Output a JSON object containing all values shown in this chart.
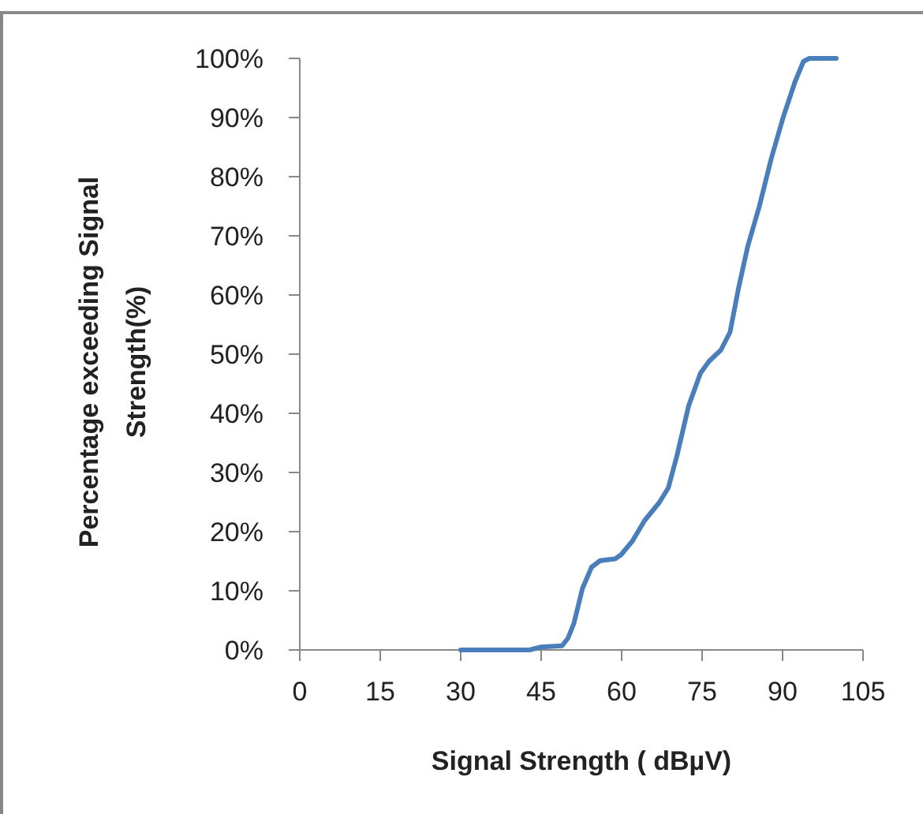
{
  "chart_data": {
    "type": "line",
    "xlabel": "Signal Strength ( dBµV)",
    "ylabel": "Percentage exceeding Signal\nStrength(%)",
    "x": [
      30,
      42.8,
      45,
      48.9,
      50,
      51.1,
      52.7,
      54.4,
      56,
      58.8,
      59.9,
      62,
      64.3,
      67,
      68.7,
      70.3,
      72.5,
      74.7,
      76.3,
      78.5,
      80.2,
      81.8,
      83.5,
      85.7,
      87.9,
      90.1,
      92.3,
      93.9,
      95,
      100
    ],
    "series": [
      {
        "color": "#4a7ebb",
        "values": [
          0,
          0,
          0.5,
          0.7,
          2,
          4.5,
          10.4,
          14,
          15.1,
          15.4,
          16.1,
          18.4,
          21.9,
          24.9,
          27.4,
          32.8,
          41.3,
          46.8,
          48.8,
          50.7,
          53.7,
          61.2,
          68.2,
          75.1,
          83.1,
          90,
          96,
          99.5,
          100,
          100
        ]
      }
    ],
    "xlim": [
      0,
      105
    ],
    "xticks": [
      0,
      15,
      30,
      45,
      60,
      75,
      90,
      105
    ],
    "ylim": [
      0,
      100
    ],
    "yticks": [
      {
        "value": 0,
        "label": "0%"
      },
      {
        "value": 10,
        "label": "10%"
      },
      {
        "value": 20,
        "label": "20%"
      },
      {
        "value": 30,
        "label": "30%"
      },
      {
        "value": 40,
        "label": "40%"
      },
      {
        "value": 50,
        "label": "50%"
      },
      {
        "value": 60,
        "label": "60%"
      },
      {
        "value": 70,
        "label": "70%"
      },
      {
        "value": 80,
        "label": "80%"
      },
      {
        "value": 90,
        "label": "90%"
      },
      {
        "value": 100,
        "label": "100%"
      }
    ],
    "grid": false,
    "marker": "none",
    "line_style": "solid"
  }
}
